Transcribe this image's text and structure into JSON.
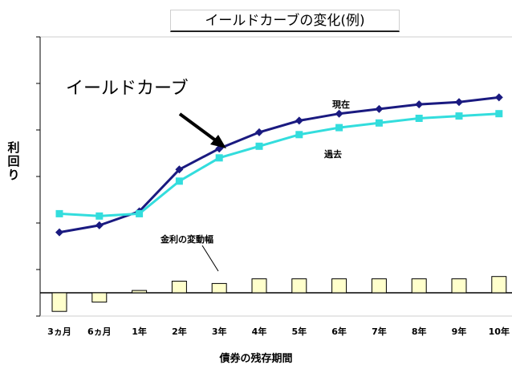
{
  "chart_data": {
    "type": "line",
    "title": "イールドカーブの変化(例)",
    "xlabel": "債券の残存期間",
    "ylabel": "利回り",
    "categories": [
      "3ヵ月",
      "6ヵ月",
      "1年",
      "2年",
      "3年",
      "4年",
      "5年",
      "6年",
      "7年",
      "8年",
      "9年",
      "10年"
    ],
    "series": [
      {
        "name": "現在",
        "color": "#1a1a80",
        "marker": "diamond",
        "values": [
          2.6,
          2.9,
          3.5,
          5.3,
          6.2,
          6.9,
          7.4,
          7.7,
          7.9,
          8.1,
          8.2,
          8.4
        ]
      },
      {
        "name": "過去",
        "color": "#33dddd",
        "marker": "square",
        "values": [
          3.4,
          3.3,
          3.4,
          4.8,
          5.8,
          6.3,
          6.8,
          7.1,
          7.3,
          7.5,
          7.6,
          7.7
        ]
      }
    ],
    "bars": {
      "name": "金利の変動幅",
      "color": "#ffffcc",
      "values": [
        -0.8,
        -0.4,
        0.1,
        0.5,
        0.4,
        0.6,
        0.6,
        0.6,
        0.6,
        0.6,
        0.6,
        0.7
      ]
    },
    "ylim": [
      -1.0,
      11.0
    ],
    "grid": false,
    "annotations": {
      "curve_label": "イールドカーブ",
      "current_label": "現在",
      "past_label": "過去",
      "diff_label": "金利の変動幅"
    }
  }
}
